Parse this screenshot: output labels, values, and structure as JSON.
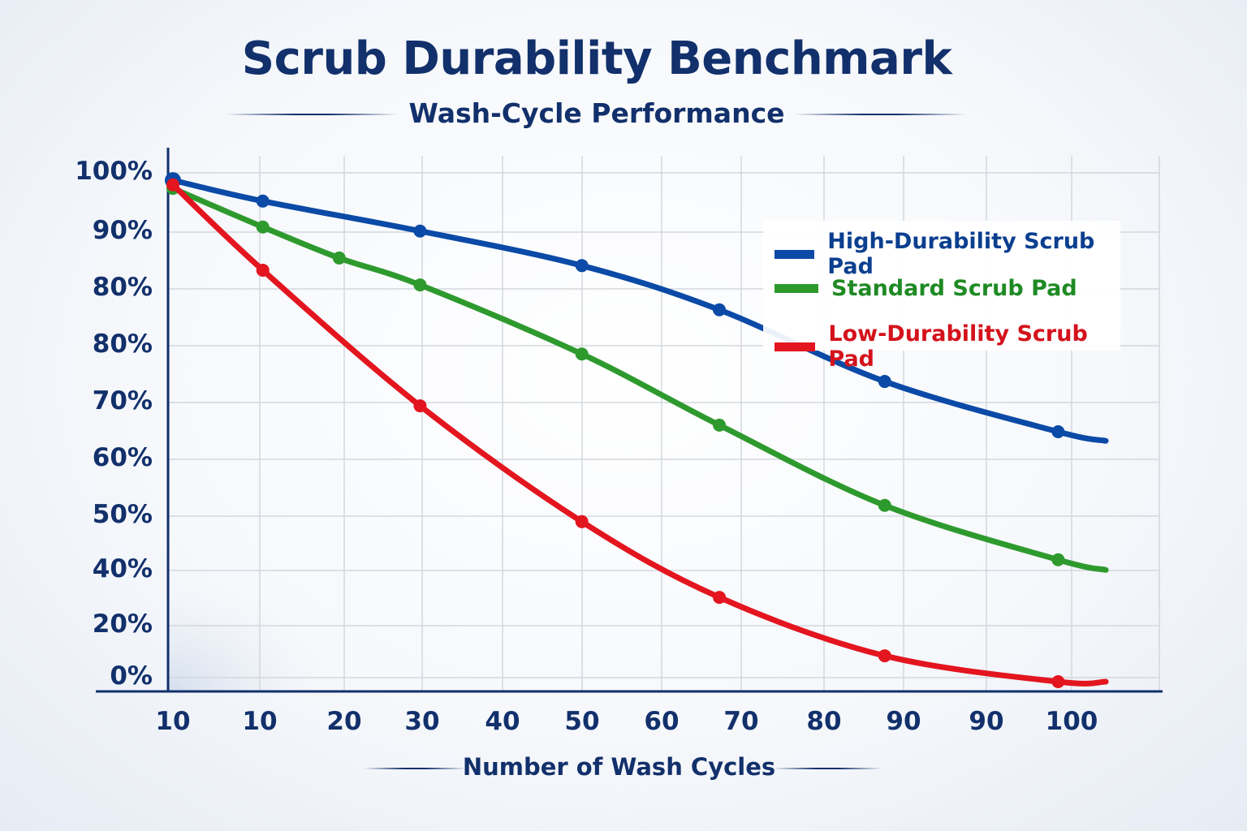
{
  "chart_data": {
    "type": "line",
    "title": "Scrub Durability Benchmark",
    "subtitle": "Wash-Cycle Performance",
    "xlabel": "Number of Wash Cycles",
    "ylabel": "",
    "x_tick_labels": [
      "10",
      "10",
      "20",
      "30",
      "40",
      "50",
      "60",
      "70",
      "80",
      "90",
      "90",
      "100"
    ],
    "y_tick_labels": [
      "100%",
      "90%",
      "80%",
      "80%",
      "70%",
      "60%",
      "50%",
      "40%",
      "20%",
      "0%"
    ],
    "xlim": [
      0,
      105
    ],
    "ylim": [
      0,
      100
    ],
    "grid": true,
    "legend_position": "top-right",
    "series": [
      {
        "name": "High-Durability Scrub Pad",
        "color": "#0b4aa6",
        "x": [
          0,
          10,
          27.5,
          45.5,
          60.8,
          79.2,
          98.5,
          103.8
        ],
        "y": [
          98.7,
          94.6,
          88.7,
          81.9,
          73.2,
          59.1,
          49.2,
          47.4
        ]
      },
      {
        "name": "Standard Scrub Pad",
        "color": "#2e9a2e",
        "x": [
          0,
          10,
          18.5,
          27.5,
          45.5,
          60.8,
          79.2,
          98.5,
          103.8
        ],
        "y": [
          97.1,
          89.5,
          83.4,
          78.1,
          64.5,
          50.5,
          34.7,
          24,
          22
        ]
      },
      {
        "name": "Low-Durability Scrub Pad",
        "color": "#e3151f",
        "x": [
          0,
          10,
          27.5,
          45.5,
          60.8,
          79.2,
          98.5,
          103.8
        ],
        "y": [
          97.8,
          81,
          54.3,
          31.5,
          16.6,
          5.1,
          0,
          0
        ]
      }
    ]
  }
}
